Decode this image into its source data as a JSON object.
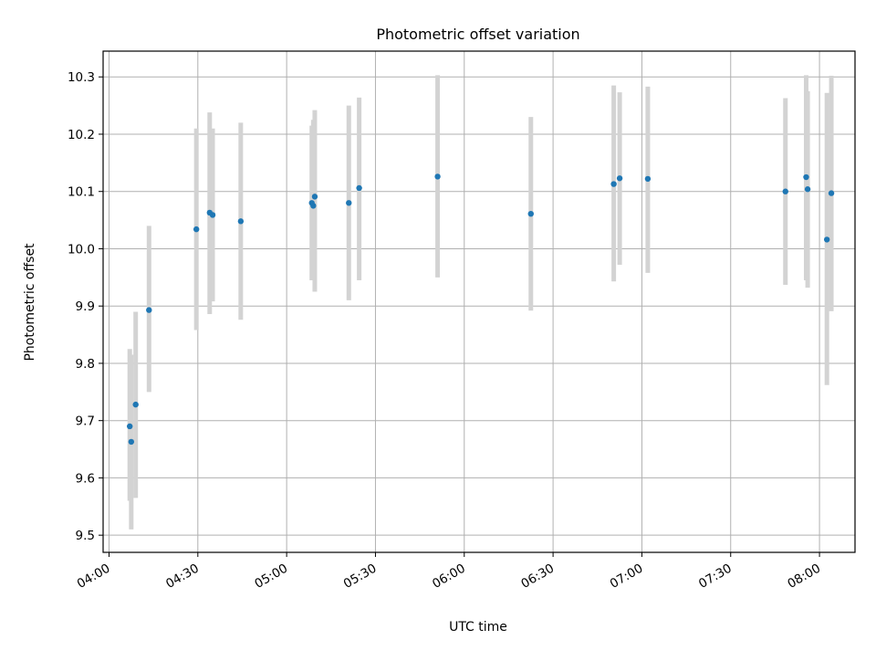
{
  "chart_data": {
    "type": "scatter",
    "title": "Photometric offset variation",
    "xlabel": "UTC time",
    "ylabel": "Photometric offset",
    "x_axis": {
      "type": "time",
      "range": [
        "03:58",
        "08:12"
      ],
      "ticks": [
        "04:00",
        "04:30",
        "05:00",
        "05:30",
        "06:00",
        "06:30",
        "07:00",
        "07:30",
        "08:00"
      ],
      "tick_label_rotation_deg": 30
    },
    "y_axis": {
      "range": [
        9.47,
        10.345
      ],
      "ticks": [
        9.5,
        9.6,
        9.7,
        9.8,
        9.9,
        10.0,
        10.1,
        10.2,
        10.3
      ],
      "tick_labels": [
        "9.5",
        "9.6",
        "9.7",
        "9.8",
        "9.9",
        "10.0",
        "10.1",
        "10.2",
        "10.3"
      ]
    },
    "grid": true,
    "legend": "none",
    "point_color": "#1f77b4",
    "errorbar_color": "#d3d3d3",
    "points": [
      {
        "x": "04:07:00",
        "y": 9.69,
        "lower": 9.56,
        "upper": 9.825
      },
      {
        "x": "04:07:30",
        "y": 9.663,
        "lower": 9.51,
        "upper": 9.815
      },
      {
        "x": "04:09:00",
        "y": 9.728,
        "lower": 9.565,
        "upper": 9.89
      },
      {
        "x": "04:13:30",
        "y": 9.893,
        "lower": 9.75,
        "upper": 10.04
      },
      {
        "x": "04:29:30",
        "y": 10.034,
        "lower": 9.858,
        "upper": 10.21
      },
      {
        "x": "04:34:00",
        "y": 10.063,
        "lower": 9.886,
        "upper": 10.238
      },
      {
        "x": "04:35:00",
        "y": 10.059,
        "lower": 9.908,
        "upper": 10.21
      },
      {
        "x": "04:44:30",
        "y": 10.048,
        "lower": 9.876,
        "upper": 10.22
      },
      {
        "x": "05:08:30",
        "y": 10.08,
        "lower": 9.945,
        "upper": 10.215
      },
      {
        "x": "05:09:00",
        "y": 10.075,
        "lower": 9.945,
        "upper": 10.225
      },
      {
        "x": "05:09:30",
        "y": 10.091,
        "lower": 9.925,
        "upper": 10.242
      },
      {
        "x": "05:21:00",
        "y": 10.08,
        "lower": 9.91,
        "upper": 10.25
      },
      {
        "x": "05:24:30",
        "y": 10.106,
        "lower": 9.945,
        "upper": 10.264
      },
      {
        "x": "05:51:00",
        "y": 10.126,
        "lower": 9.95,
        "upper": 10.303
      },
      {
        "x": "06:22:30",
        "y": 10.061,
        "lower": 9.892,
        "upper": 10.23
      },
      {
        "x": "06:50:30",
        "y": 10.113,
        "lower": 9.943,
        "upper": 10.285
      },
      {
        "x": "06:52:30",
        "y": 10.123,
        "lower": 9.972,
        "upper": 10.273
      },
      {
        "x": "07:02:00",
        "y": 10.122,
        "lower": 9.958,
        "upper": 10.283
      },
      {
        "x": "07:48:30",
        "y": 10.1,
        "lower": 9.937,
        "upper": 10.263
      },
      {
        "x": "07:55:30",
        "y": 10.125,
        "lower": 9.945,
        "upper": 10.303
      },
      {
        "x": "07:56:00",
        "y": 10.104,
        "lower": 9.932,
        "upper": 10.275
      },
      {
        "x": "08:02:30",
        "y": 10.016,
        "lower": 9.762,
        "upper": 10.272
      },
      {
        "x": "08:04:00",
        "y": 10.097,
        "lower": 9.891,
        "upper": 10.302
      }
    ]
  }
}
